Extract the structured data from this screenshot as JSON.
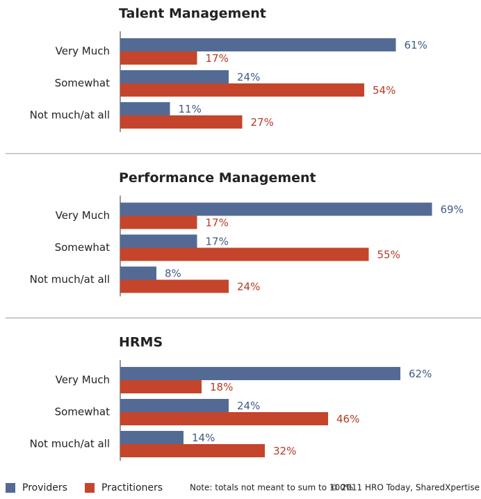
{
  "chart_data": [
    {
      "type": "bar",
      "title": "Talent Management",
      "categories": [
        "Very Much",
        "Somewhat",
        "Not much/at all"
      ],
      "series": [
        {
          "name": "Providers",
          "color": "#536b94",
          "values": [
            61,
            24,
            11
          ],
          "value_labels": [
            "61%",
            "24%",
            "11%"
          ]
        },
        {
          "name": "Practitioners",
          "color": "#c4452b",
          "values": [
            17,
            54,
            27
          ],
          "value_labels": [
            "17%",
            "54%",
            "27%"
          ]
        }
      ]
    },
    {
      "type": "bar",
      "title": "Performance Management",
      "categories": [
        "Very Much",
        "Somewhat",
        "Not much/at all"
      ],
      "series": [
        {
          "name": "Providers",
          "color": "#536b94",
          "values": [
            69,
            17,
            8
          ],
          "value_labels": [
            "69%",
            "17%",
            "8%"
          ]
        },
        {
          "name": "Practitioners",
          "color": "#c4452b",
          "values": [
            17,
            55,
            24
          ],
          "value_labels": [
            "17%",
            "55%",
            "24%"
          ]
        }
      ]
    },
    {
      "type": "bar",
      "title": "HRMS",
      "categories": [
        "Very Much",
        "Somewhat",
        "Not much/at all"
      ],
      "series": [
        {
          "name": "Providers",
          "color": "#536b94",
          "values": [
            62,
            24,
            14
          ],
          "value_labels": [
            "62%",
            "24%",
            "14%"
          ]
        },
        {
          "name": "Practitioners",
          "color": "#c4452b",
          "values": [
            18,
            46,
            32
          ],
          "value_labels": [
            "18%",
            "46%",
            "32%"
          ]
        }
      ]
    }
  ],
  "note": "Note: totals not meant to sum to 100%.",
  "source": "© 2011 HRO Today, SharedXpertise"
}
